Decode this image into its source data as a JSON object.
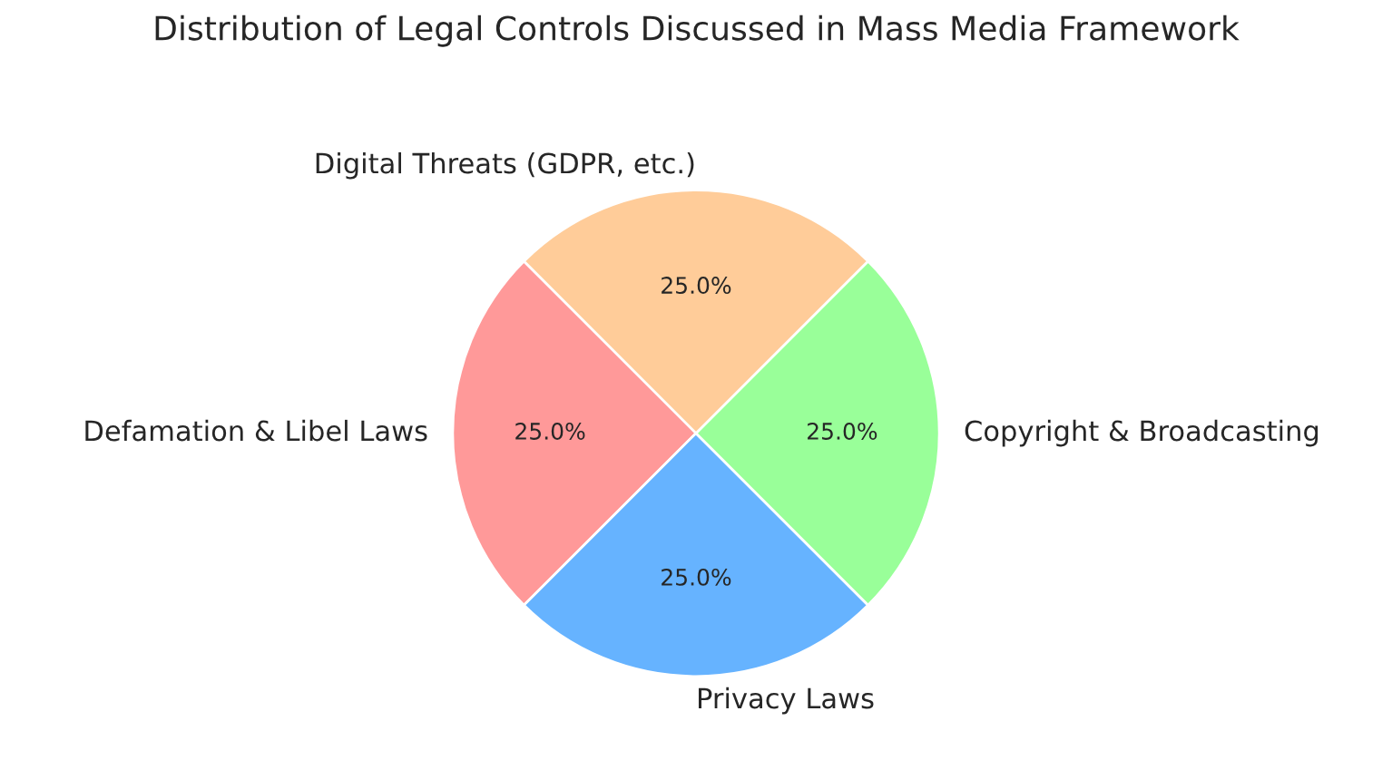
{
  "chart_data": {
    "type": "pie",
    "title": "Distribution of Legal Controls Discussed in Mass Media Framework",
    "categories": [
      "Defamation & Libel Laws",
      "Privacy Laws",
      "Copyright & Broadcasting",
      "Digital Threats (GDPR, etc.)"
    ],
    "values": [
      25,
      25,
      25,
      25
    ],
    "colors": [
      "#ff9999",
      "#66b3ff",
      "#99ff99",
      "#ffcc99"
    ],
    "value_labels": [
      "25.0%",
      "25.0%",
      "25.0%",
      "25.0%"
    ]
  }
}
